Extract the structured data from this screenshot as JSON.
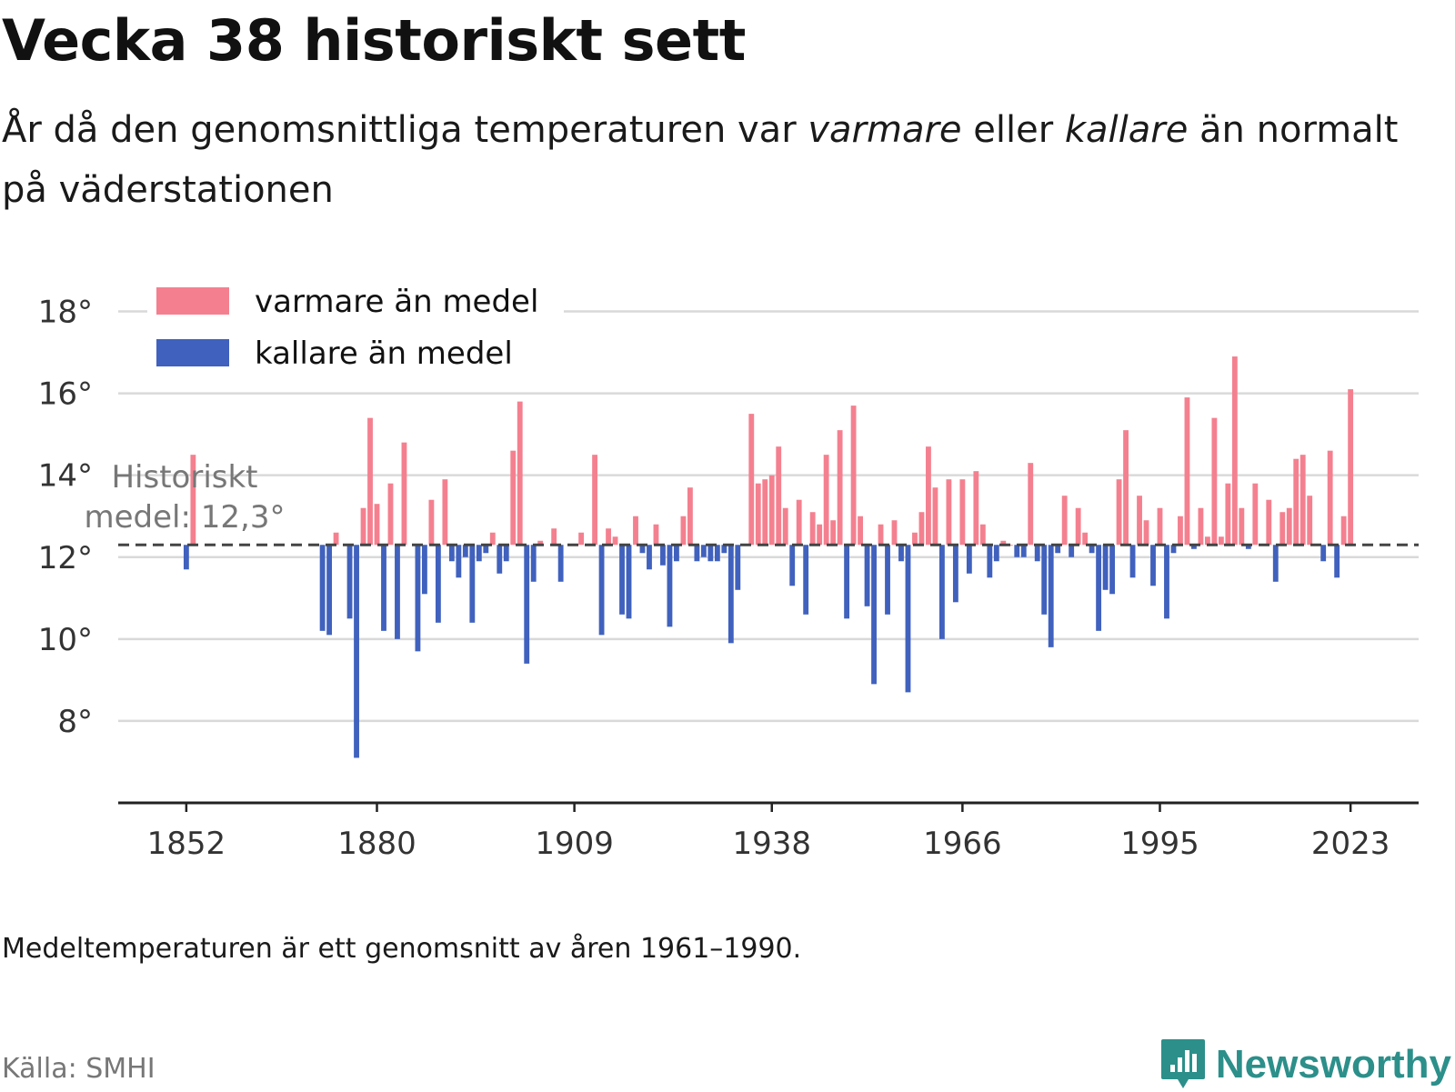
{
  "header": {
    "title": "Vecka 38 historiskt sett",
    "subtitle_a": "År då den genomsnittliga temperaturen var ",
    "subtitle_warm": "varmare",
    "subtitle_b": " eller ",
    "subtitle_cold": "kallare",
    "subtitle_c": " än normalt på väderstationen"
  },
  "footer": {
    "footnote": "Medeltemperaturen är ett genomsnitt av åren 1961–1990.",
    "source": "Källa: SMHI",
    "brand": "Newsworthy"
  },
  "colors": {
    "warm": "#f4808f",
    "cold": "#4061bd",
    "brand": "#2c8f8a",
    "grid": "#d9d9d9",
    "reference_line": "#444444"
  },
  "chart_data": {
    "type": "bar",
    "baseline": 12.3,
    "baseline_label_line1": "Historiskt",
    "baseline_label_line2": "medel: 12,3°",
    "xlim": [
      1842,
      2033
    ],
    "ylim": [
      6,
      18.5
    ],
    "yticks": [
      8,
      10,
      12,
      14,
      16,
      18
    ],
    "ytick_labels": [
      "8°",
      "10°",
      "12°",
      "14°",
      "16°",
      "18°"
    ],
    "xticks": [
      1852,
      1880,
      1909,
      1938,
      1966,
      1995,
      2023
    ],
    "xtick_labels": [
      "1852",
      "1880",
      "1909",
      "1938",
      "1966",
      "1995",
      "2023"
    ],
    "grid": true,
    "legend_position": "top-left",
    "series": [
      {
        "name": "varmare än medel",
        "color": "#f4808f"
      },
      {
        "name": "kallare än medel",
        "color": "#4061bd"
      }
    ],
    "data": [
      {
        "year": 1852,
        "value": 11.7
      },
      {
        "year": 1853,
        "value": 14.5
      },
      {
        "year": 1872,
        "value": 10.2
      },
      {
        "year": 1873,
        "value": 10.1
      },
      {
        "year": 1874,
        "value": 12.6
      },
      {
        "year": 1876,
        "value": 10.5
      },
      {
        "year": 1877,
        "value": 7.1
      },
      {
        "year": 1878,
        "value": 13.2
      },
      {
        "year": 1879,
        "value": 15.4
      },
      {
        "year": 1880,
        "value": 13.3
      },
      {
        "year": 1881,
        "value": 10.2
      },
      {
        "year": 1882,
        "value": 13.8
      },
      {
        "year": 1883,
        "value": 10.0
      },
      {
        "year": 1884,
        "value": 14.8
      },
      {
        "year": 1886,
        "value": 9.7
      },
      {
        "year": 1887,
        "value": 11.1
      },
      {
        "year": 1888,
        "value": 13.4
      },
      {
        "year": 1889,
        "value": 10.4
      },
      {
        "year": 1890,
        "value": 13.9
      },
      {
        "year": 1891,
        "value": 11.9
      },
      {
        "year": 1892,
        "value": 11.5
      },
      {
        "year": 1893,
        "value": 12.0
      },
      {
        "year": 1894,
        "value": 10.4
      },
      {
        "year": 1895,
        "value": 11.9
      },
      {
        "year": 1896,
        "value": 12.1
      },
      {
        "year": 1897,
        "value": 12.6
      },
      {
        "year": 1898,
        "value": 11.6
      },
      {
        "year": 1899,
        "value": 11.9
      },
      {
        "year": 1900,
        "value": 14.6
      },
      {
        "year": 1901,
        "value": 15.8
      },
      {
        "year": 1902,
        "value": 9.4
      },
      {
        "year": 1903,
        "value": 11.4
      },
      {
        "year": 1904,
        "value": 12.4
      },
      {
        "year": 1906,
        "value": 12.7
      },
      {
        "year": 1907,
        "value": 11.4
      },
      {
        "year": 1910,
        "value": 12.6
      },
      {
        "year": 1912,
        "value": 14.5
      },
      {
        "year": 1913,
        "value": 10.1
      },
      {
        "year": 1914,
        "value": 12.7
      },
      {
        "year": 1915,
        "value": 12.5
      },
      {
        "year": 1916,
        "value": 10.6
      },
      {
        "year": 1917,
        "value": 10.5
      },
      {
        "year": 1918,
        "value": 13.0
      },
      {
        "year": 1919,
        "value": 12.1
      },
      {
        "year": 1920,
        "value": 11.7
      },
      {
        "year": 1921,
        "value": 12.8
      },
      {
        "year": 1922,
        "value": 11.8
      },
      {
        "year": 1923,
        "value": 10.3
      },
      {
        "year": 1924,
        "value": 11.9
      },
      {
        "year": 1925,
        "value": 13.0
      },
      {
        "year": 1926,
        "value": 13.7
      },
      {
        "year": 1927,
        "value": 11.9
      },
      {
        "year": 1928,
        "value": 12.0
      },
      {
        "year": 1929,
        "value": 11.9
      },
      {
        "year": 1930,
        "value": 11.9
      },
      {
        "year": 1931,
        "value": 12.1
      },
      {
        "year": 1932,
        "value": 9.9
      },
      {
        "year": 1933,
        "value": 11.2
      },
      {
        "year": 1935,
        "value": 15.5
      },
      {
        "year": 1936,
        "value": 13.8
      },
      {
        "year": 1937,
        "value": 13.9
      },
      {
        "year": 1938,
        "value": 14.0
      },
      {
        "year": 1939,
        "value": 14.7
      },
      {
        "year": 1940,
        "value": 13.2
      },
      {
        "year": 1941,
        "value": 11.3
      },
      {
        "year": 1942,
        "value": 13.4
      },
      {
        "year": 1943,
        "value": 10.6
      },
      {
        "year": 1944,
        "value": 13.1
      },
      {
        "year": 1945,
        "value": 12.8
      },
      {
        "year": 1946,
        "value": 14.5
      },
      {
        "year": 1947,
        "value": 12.9
      },
      {
        "year": 1948,
        "value": 15.1
      },
      {
        "year": 1949,
        "value": 10.5
      },
      {
        "year": 1950,
        "value": 15.7
      },
      {
        "year": 1951,
        "value": 13.0
      },
      {
        "year": 1952,
        "value": 10.8
      },
      {
        "year": 1953,
        "value": 8.9
      },
      {
        "year": 1954,
        "value": 12.8
      },
      {
        "year": 1955,
        "value": 10.6
      },
      {
        "year": 1956,
        "value": 12.9
      },
      {
        "year": 1957,
        "value": 11.9
      },
      {
        "year": 1958,
        "value": 8.7
      },
      {
        "year": 1959,
        "value": 12.6
      },
      {
        "year": 1960,
        "value": 13.1
      },
      {
        "year": 1961,
        "value": 14.7
      },
      {
        "year": 1962,
        "value": 13.7
      },
      {
        "year": 1963,
        "value": 10.0
      },
      {
        "year": 1964,
        "value": 13.9
      },
      {
        "year": 1965,
        "value": 10.9
      },
      {
        "year": 1966,
        "value": 13.9
      },
      {
        "year": 1967,
        "value": 11.6
      },
      {
        "year": 1968,
        "value": 14.1
      },
      {
        "year": 1969,
        "value": 12.8
      },
      {
        "year": 1970,
        "value": 11.5
      },
      {
        "year": 1971,
        "value": 11.9
      },
      {
        "year": 1972,
        "value": 12.4
      },
      {
        "year": 1973,
        "value": 12.3
      },
      {
        "year": 1974,
        "value": 12.0
      },
      {
        "year": 1975,
        "value": 12.0
      },
      {
        "year": 1976,
        "value": 14.3
      },
      {
        "year": 1977,
        "value": 11.9
      },
      {
        "year": 1978,
        "value": 10.6
      },
      {
        "year": 1979,
        "value": 9.8
      },
      {
        "year": 1980,
        "value": 12.1
      },
      {
        "year": 1981,
        "value": 13.5
      },
      {
        "year": 1982,
        "value": 12.0
      },
      {
        "year": 1983,
        "value": 13.2
      },
      {
        "year": 1984,
        "value": 12.6
      },
      {
        "year": 1985,
        "value": 12.1
      },
      {
        "year": 1986,
        "value": 10.2
      },
      {
        "year": 1987,
        "value": 11.2
      },
      {
        "year": 1988,
        "value": 11.1
      },
      {
        "year": 1989,
        "value": 13.9
      },
      {
        "year": 1990,
        "value": 15.1
      },
      {
        "year": 1991,
        "value": 11.5
      },
      {
        "year": 1992,
        "value": 13.5
      },
      {
        "year": 1993,
        "value": 12.9
      },
      {
        "year": 1994,
        "value": 11.3
      },
      {
        "year": 1995,
        "value": 13.2
      },
      {
        "year": 1996,
        "value": 10.5
      },
      {
        "year": 1997,
        "value": 12.1
      },
      {
        "year": 1998,
        "value": 13.0
      },
      {
        "year": 1999,
        "value": 15.9
      },
      {
        "year": 2000,
        "value": 12.2
      },
      {
        "year": 2001,
        "value": 13.2
      },
      {
        "year": 2002,
        "value": 12.5
      },
      {
        "year": 2003,
        "value": 15.4
      },
      {
        "year": 2004,
        "value": 12.5
      },
      {
        "year": 2005,
        "value": 13.8
      },
      {
        "year": 2006,
        "value": 16.9
      },
      {
        "year": 2007,
        "value": 13.2
      },
      {
        "year": 2008,
        "value": 12.2
      },
      {
        "year": 2009,
        "value": 13.8
      },
      {
        "year": 2011,
        "value": 13.4
      },
      {
        "year": 2012,
        "value": 11.4
      },
      {
        "year": 2013,
        "value": 13.1
      },
      {
        "year": 2014,
        "value": 13.2
      },
      {
        "year": 2015,
        "value": 14.4
      },
      {
        "year": 2016,
        "value": 14.5
      },
      {
        "year": 2017,
        "value": 13.5
      },
      {
        "year": 2019,
        "value": 11.9
      },
      {
        "year": 2020,
        "value": 14.6
      },
      {
        "year": 2021,
        "value": 11.5
      },
      {
        "year": 2022,
        "value": 13.0
      },
      {
        "year": 2023,
        "value": 16.1
      }
    ]
  }
}
